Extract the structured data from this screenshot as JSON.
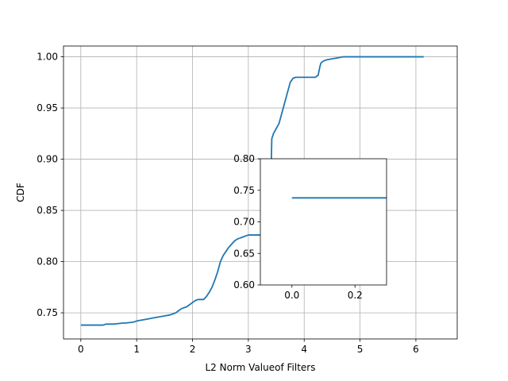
{
  "chart_data": [
    {
      "type": "line",
      "xlabel": "L2 Norm Valueof Filters",
      "ylabel": "CDF",
      "xlim": [
        -0.31,
        6.74
      ],
      "ylim": [
        0.7245,
        1.0105
      ],
      "xticks": [
        0,
        1,
        2,
        3,
        4,
        5,
        6
      ],
      "xtick_labels": [
        "0",
        "1",
        "2",
        "3",
        "4",
        "5",
        "6"
      ],
      "yticks": [
        0.75,
        0.8,
        0.85,
        0.9,
        0.95,
        1.0
      ],
      "ytick_labels": [
        "0.75",
        "0.80",
        "0.85",
        "0.90",
        "0.95",
        "1.00"
      ],
      "grid": true,
      "color": "#1f77b4",
      "series": [
        {
          "x": [
            0,
            0.1,
            0.2,
            0.3,
            0.4,
            0.45,
            0.6,
            0.75,
            0.8,
            0.95,
            1.0,
            1.1,
            1.2,
            1.3,
            1.4,
            1.5,
            1.6,
            1.7,
            1.75,
            1.8,
            1.9,
            1.95,
            2.0,
            2.05,
            2.1,
            2.15,
            2.2,
            2.25,
            2.3,
            2.35,
            2.4,
            2.45,
            2.5,
            2.55,
            2.6,
            2.65,
            2.7,
            2.75,
            2.8,
            2.85,
            2.9,
            2.95,
            3.0,
            3.1,
            3.2,
            3.3,
            3.35,
            3.4,
            3.42,
            3.45,
            3.5,
            3.55,
            3.6,
            3.65,
            3.7,
            3.75,
            3.8,
            3.85,
            3.9,
            4.0,
            4.1,
            4.2,
            4.25,
            4.28,
            4.3,
            4.35,
            4.4,
            4.5,
            4.6,
            4.7,
            4.8,
            5.0,
            5.5,
            6.1,
            6.14
          ],
          "y": [
            0.738,
            0.738,
            0.738,
            0.738,
            0.738,
            0.739,
            0.739,
            0.74,
            0.74,
            0.741,
            0.742,
            0.743,
            0.744,
            0.745,
            0.746,
            0.747,
            0.748,
            0.75,
            0.752,
            0.754,
            0.756,
            0.758,
            0.76,
            0.762,
            0.763,
            0.763,
            0.763,
            0.766,
            0.77,
            0.775,
            0.782,
            0.79,
            0.8,
            0.806,
            0.81,
            0.814,
            0.817,
            0.82,
            0.822,
            0.823,
            0.824,
            0.825,
            0.826,
            0.826,
            0.826,
            0.826,
            0.826,
            0.87,
            0.92,
            0.925,
            0.93,
            0.935,
            0.945,
            0.955,
            0.965,
            0.975,
            0.979,
            0.98,
            0.98,
            0.98,
            0.98,
            0.98,
            0.982,
            0.99,
            0.994,
            0.996,
            0.997,
            0.998,
            0.999,
            1.0,
            1.0,
            1.0,
            1.0,
            1.0,
            1.0
          ]
        }
      ]
    },
    {
      "type": "line",
      "xlabel": "",
      "ylabel": "",
      "xlim": [
        -0.1,
        0.3
      ],
      "ylim": [
        0.6,
        0.8
      ],
      "xticks": [
        0.0,
        0.2
      ],
      "xtick_labels": [
        "0.0",
        "0.2"
      ],
      "yticks": [
        0.6,
        0.65,
        0.7,
        0.75,
        0.8
      ],
      "ytick_labels": [
        "0.60",
        "0.65",
        "0.70",
        "0.75",
        "0.80"
      ],
      "grid": false,
      "color": "#1f77b4",
      "series": [
        {
          "x": [
            0.0,
            0.3
          ],
          "y": [
            0.738,
            0.738
          ]
        }
      ]
    }
  ]
}
